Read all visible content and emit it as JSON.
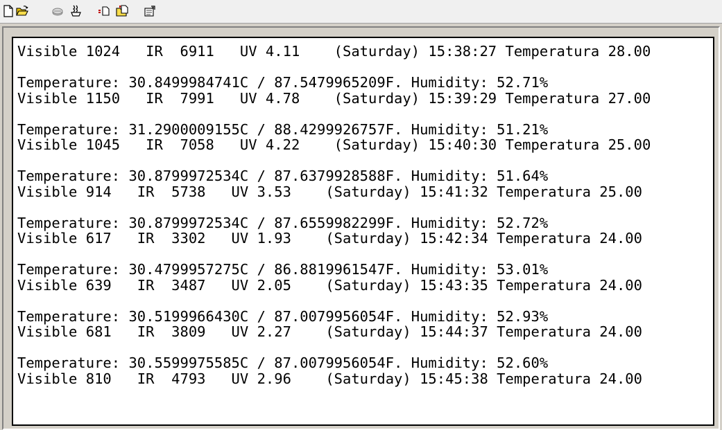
{
  "toolbar": {
    "buttons": [
      {
        "name": "new-file-icon",
        "color": "#000000"
      },
      {
        "name": "open-folder-icon",
        "color": "#d8a800"
      },
      {
        "name": "disk-icon",
        "color": "#808080"
      },
      {
        "name": "coffee-tool-icon",
        "color": "#6a4b2e"
      },
      {
        "name": "copy-icon",
        "color": "#c00000"
      },
      {
        "name": "paste-folder-icon",
        "color": "#d8a800"
      },
      {
        "name": "properties-icon",
        "color": "#404040"
      }
    ]
  },
  "terminal": {
    "lines": [
      "Visible 1024   IR  6911   UV 4.11    (Saturday) 15:38:27 Temperatura 28.00",
      "",
      "Temperature: 30.8499984741C / 87.5479965209F. Humidity: 52.71%",
      "Visible 1150   IR  7991   UV 4.78    (Saturday) 15:39:29 Temperatura 27.00",
      "",
      "Temperature: 31.2900009155C / 88.4299926757F. Humidity: 51.21%",
      "Visible 1045   IR  7058   UV 4.22    (Saturday) 15:40:30 Temperatura 25.00",
      "",
      "Temperature: 30.8799972534C / 87.6379928588F. Humidity: 51.64%",
      "Visible 914   IR  5738   UV 3.53    (Saturday) 15:41:32 Temperatura 25.00",
      "",
      "Temperature: 30.8799972534C / 87.6559982299F. Humidity: 52.72%",
      "Visible 617   IR  3302   UV 1.93    (Saturday) 15:42:34 Temperatura 24.00",
      "",
      "Temperature: 30.4799957275C / 86.8819961547F. Humidity: 53.01%",
      "Visible 639   IR  3487   UV 2.05    (Saturday) 15:43:35 Temperatura 24.00",
      "",
      "Temperature: 30.5199966430C / 87.0079956054F. Humidity: 52.93%",
      "Visible 681   IR  3809   UV 2.27    (Saturday) 15:44:37 Temperatura 24.00",
      "",
      "Temperature: 30.5599975585C / 87.0079956054F. Humidity: 52.60%",
      "Visible 810   IR  4793   UV 2.96    (Saturday) 15:45:38 Temperatura 24.00"
    ]
  }
}
